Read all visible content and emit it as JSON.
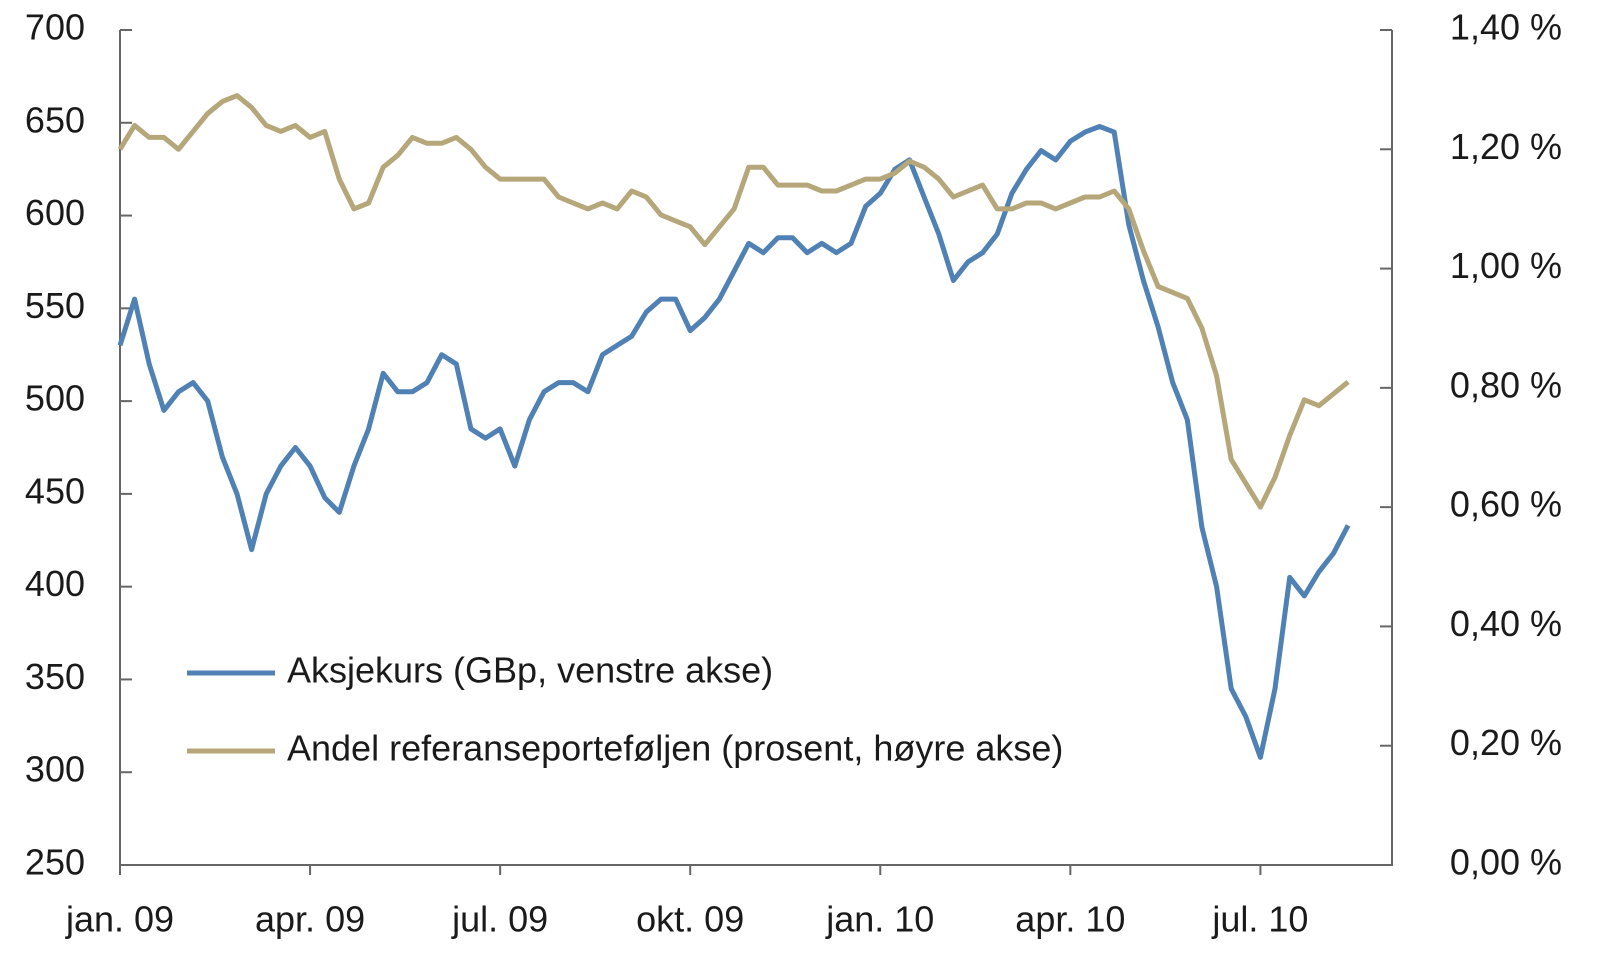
{
  "chart_data": {
    "type": "line",
    "categories": [
      "jan. 09",
      null,
      null,
      null,
      null,
      null,
      null,
      null,
      null,
      null,
      null,
      null,
      null,
      "apr. 09",
      null,
      null,
      null,
      null,
      null,
      null,
      null,
      null,
      null,
      null,
      null,
      null,
      "jul. 09",
      null,
      null,
      null,
      null,
      null,
      null,
      null,
      null,
      null,
      null,
      null,
      null,
      "okt. 09",
      null,
      null,
      null,
      null,
      null,
      null,
      null,
      null,
      null,
      null,
      null,
      null,
      "jan. 10",
      null,
      null,
      null,
      null,
      null,
      null,
      null,
      null,
      null,
      null,
      null,
      null,
      "apr. 10",
      null,
      null,
      null,
      null,
      null,
      null,
      null,
      null,
      null,
      null,
      null,
      null,
      "jul. 10",
      null,
      null,
      null,
      null,
      null,
      null,
      null,
      null,
      null
    ],
    "series": [
      {
        "name": "Aksjekurs (GBp, venstre akse)",
        "color": "#4f81b5",
        "axis": "y",
        "values": [
          530,
          555,
          520,
          495,
          505,
          510,
          500,
          470,
          450,
          420,
          450,
          465,
          475,
          465,
          448,
          440,
          465,
          485,
          515,
          505,
          505,
          510,
          525,
          520,
          485,
          480,
          485,
          465,
          490,
          505,
          510,
          510,
          505,
          525,
          530,
          535,
          548,
          555,
          555,
          538,
          545,
          555,
          570,
          585,
          580,
          588,
          588,
          580,
          585,
          580,
          585,
          605,
          612,
          625,
          630,
          610,
          590,
          565,
          575,
          580,
          590,
          612,
          625,
          635,
          630,
          640,
          645,
          648,
          645,
          595,
          565,
          540,
          510,
          490,
          432,
          400,
          345,
          330,
          308,
          345,
          405,
          395,
          408,
          418,
          433,
          null,
          null,
          null
        ]
      },
      {
        "name": "Andel referanseporteføljen (prosent, høyre akse)",
        "color": "#b5a77a",
        "axis": "y2",
        "values": [
          1.2,
          1.24,
          1.22,
          1.22,
          1.2,
          1.23,
          1.26,
          1.28,
          1.29,
          1.27,
          1.24,
          1.23,
          1.24,
          1.22,
          1.23,
          1.15,
          1.1,
          1.11,
          1.17,
          1.19,
          1.22,
          1.21,
          1.21,
          1.22,
          1.2,
          1.17,
          1.15,
          1.15,
          1.15,
          1.15,
          1.12,
          1.11,
          1.1,
          1.11,
          1.1,
          1.13,
          1.12,
          1.09,
          1.08,
          1.07,
          1.04,
          1.07,
          1.1,
          1.17,
          1.17,
          1.14,
          1.14,
          1.14,
          1.13,
          1.13,
          1.14,
          1.15,
          1.15,
          1.16,
          1.18,
          1.17,
          1.15,
          1.12,
          1.13,
          1.14,
          1.1,
          1.1,
          1.11,
          1.11,
          1.1,
          1.11,
          1.12,
          1.12,
          1.13,
          1.1,
          1.03,
          0.97,
          0.96,
          0.95,
          0.9,
          0.82,
          0.68,
          0.64,
          0.6,
          0.65,
          0.72,
          0.78,
          0.77,
          0.79,
          0.81,
          null,
          null,
          null
        ]
      }
    ],
    "ylim": [
      250,
      700
    ],
    "yticks": [
      250,
      300,
      350,
      400,
      450,
      500,
      550,
      600,
      650,
      700
    ],
    "y2lim": [
      0,
      1.4
    ],
    "y2ticks": [
      {
        "value": 0,
        "label": "0,00 %"
      },
      {
        "value": 0.2,
        "label": "0,20 %"
      },
      {
        "value": 0.4,
        "label": "0,40 %"
      },
      {
        "value": 0.6,
        "label": "0,60 %"
      },
      {
        "value": 0.8,
        "label": "0,80 %"
      },
      {
        "value": 1.0,
        "label": "1,00 %"
      },
      {
        "value": 1.2,
        "label": "1,20 %"
      },
      {
        "value": 1.4,
        "label": "1,40 %"
      }
    ],
    "legend": "lower-left",
    "grid": false
  }
}
